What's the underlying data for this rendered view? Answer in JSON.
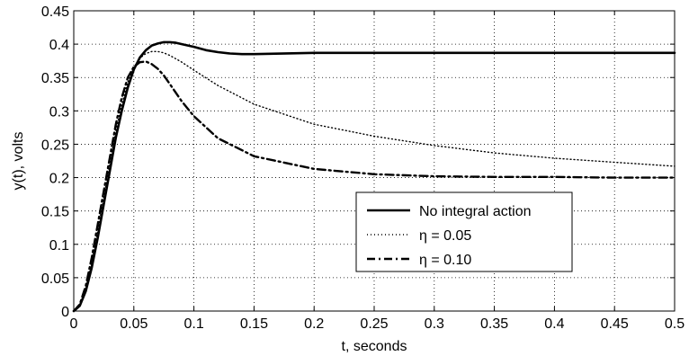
{
  "chart_data": {
    "type": "line",
    "title": "",
    "xlabel": "t, seconds",
    "ylabel": "y(t), volts",
    "xlim": [
      0,
      0.5
    ],
    "ylim": [
      0,
      0.45
    ],
    "grid": true,
    "legend_position": "center-right",
    "x_ticks": [
      0,
      0.05,
      0.1,
      0.15,
      0.2,
      0.25,
      0.3,
      0.35,
      0.4,
      0.45,
      0.5
    ],
    "x_tick_labels": [
      "0",
      "0.05",
      "0.1",
      "0.15",
      "0.2",
      "0.25",
      "0.3",
      "0.35",
      "0.4",
      "0.45",
      "0.5"
    ],
    "y_ticks": [
      0,
      0.05,
      0.1,
      0.15,
      0.2,
      0.25,
      0.3,
      0.35,
      0.4,
      0.45
    ],
    "y_tick_labels": [
      "0",
      "0.05",
      "0.1",
      "0.15",
      "0.2",
      "0.25",
      "0.3",
      "0.35",
      "0.4",
      "0.45"
    ],
    "series": [
      {
        "name": "No integral action",
        "style": "solid",
        "color": "#000000",
        "x": [
          0,
          0.005,
          0.01,
          0.015,
          0.02,
          0.025,
          0.03,
          0.035,
          0.04,
          0.045,
          0.05,
          0.055,
          0.06,
          0.065,
          0.07,
          0.075,
          0.08,
          0.085,
          0.09,
          0.1,
          0.11,
          0.12,
          0.13,
          0.14,
          0.15,
          0.2,
          0.25,
          0.3,
          0.35,
          0.4,
          0.45,
          0.5
        ],
        "y": [
          0,
          0.008,
          0.03,
          0.065,
          0.11,
          0.16,
          0.21,
          0.26,
          0.3,
          0.335,
          0.362,
          0.38,
          0.391,
          0.398,
          0.401,
          0.403,
          0.403,
          0.402,
          0.4,
          0.396,
          0.391,
          0.388,
          0.386,
          0.385,
          0.385,
          0.387,
          0.387,
          0.387,
          0.387,
          0.387,
          0.387,
          0.387
        ]
      },
      {
        "name": "η = 0.05",
        "style": "dotted",
        "color": "#000000",
        "x": [
          0,
          0.005,
          0.01,
          0.015,
          0.02,
          0.025,
          0.03,
          0.035,
          0.04,
          0.045,
          0.05,
          0.055,
          0.06,
          0.065,
          0.07,
          0.075,
          0.08,
          0.09,
          0.1,
          0.12,
          0.15,
          0.2,
          0.25,
          0.3,
          0.35,
          0.4,
          0.45,
          0.5
        ],
        "y": [
          0,
          0.009,
          0.034,
          0.072,
          0.12,
          0.17,
          0.22,
          0.27,
          0.31,
          0.343,
          0.365,
          0.379,
          0.386,
          0.389,
          0.389,
          0.387,
          0.383,
          0.373,
          0.361,
          0.338,
          0.31,
          0.28,
          0.262,
          0.248,
          0.237,
          0.229,
          0.223,
          0.217
        ]
      },
      {
        "name": "η = 0.10",
        "style": "dashdot",
        "color": "#000000",
        "x": [
          0,
          0.005,
          0.01,
          0.015,
          0.02,
          0.025,
          0.03,
          0.035,
          0.04,
          0.045,
          0.05,
          0.055,
          0.06,
          0.065,
          0.07,
          0.075,
          0.08,
          0.09,
          0.1,
          0.12,
          0.15,
          0.2,
          0.25,
          0.3,
          0.35,
          0.4,
          0.45,
          0.5
        ],
        "y": [
          0,
          0.01,
          0.038,
          0.08,
          0.13,
          0.18,
          0.23,
          0.28,
          0.32,
          0.35,
          0.366,
          0.373,
          0.374,
          0.37,
          0.363,
          0.353,
          0.34,
          0.314,
          0.292,
          0.259,
          0.232,
          0.213,
          0.205,
          0.202,
          0.201,
          0.201,
          0.2,
          0.2
        ]
      }
    ]
  }
}
